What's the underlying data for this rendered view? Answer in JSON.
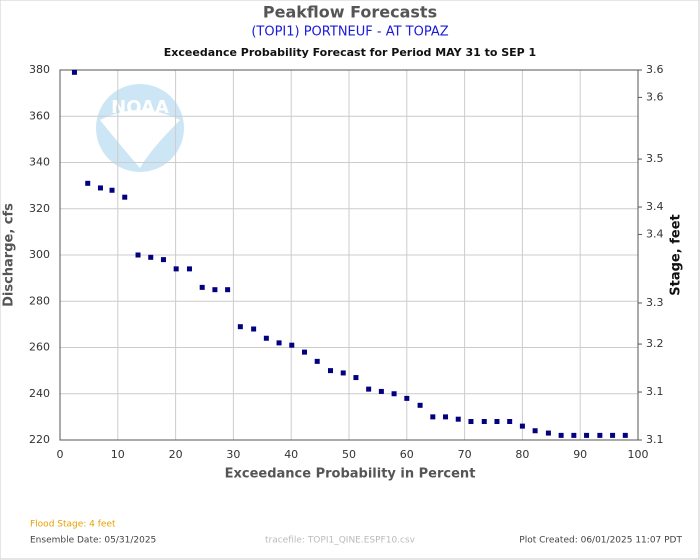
{
  "chart_data": {
    "type": "scatter",
    "title": "Peakflow Forecasts",
    "subtitle": "(TOPI1) PORTNEUF - AT TOPAZ",
    "subtitle2": "Exceedance Probability Forecast for Period MAY 31 to SEP 1",
    "watermark": "NOAA",
    "xlabel": "Exceedance Probability in Percent",
    "ylabel": "Discharge, cfs",
    "y2label": "Stage, feet",
    "xlim": [
      0,
      100
    ],
    "xticks": [
      0,
      10,
      20,
      30,
      40,
      50,
      60,
      70,
      80,
      90,
      100
    ],
    "ylim": [
      220,
      380
    ],
    "yticks": [
      220,
      240,
      260,
      280,
      300,
      320,
      340,
      360,
      380
    ],
    "y2lim": [
      3.06,
      3.6
    ],
    "y2ticks": [
      {
        "value": 3.06,
        "label": "3.1"
      },
      {
        "value": 3.13,
        "label": "3.1"
      },
      {
        "value": 3.2,
        "label": "3.2"
      },
      {
        "value": 3.26,
        "label": "3.3"
      },
      {
        "value": 3.36,
        "label": "3.4"
      },
      {
        "value": 3.4,
        "label": "3.4"
      },
      {
        "value": 3.47,
        "label": "3.5"
      },
      {
        "value": 3.56,
        "label": "3.6"
      },
      {
        "value": 3.6,
        "label": "3.6"
      }
    ],
    "grid": true,
    "color": "#000080",
    "x": [
      2.5,
      4.8,
      7,
      9,
      11.2,
      13.5,
      15.7,
      17.9,
      20.1,
      22.4,
      24.6,
      26.8,
      29,
      31.2,
      33.5,
      35.7,
      37.9,
      40.1,
      42.3,
      44.5,
      46.8,
      49,
      51.2,
      53.4,
      55.6,
      57.8,
      60,
      62.3,
      64.5,
      66.7,
      68.9,
      71.1,
      73.4,
      75.6,
      77.8,
      80,
      82.2,
      84.5,
      86.7,
      88.9,
      91.1,
      93.4,
      95.6,
      97.8
    ],
    "values": [
      379,
      331,
      329,
      328,
      325,
      300,
      299,
      298,
      294,
      294,
      286,
      285,
      285,
      269,
      268,
      264,
      262,
      261,
      258,
      254,
      250,
      249,
      247,
      242,
      241,
      240,
      238,
      235,
      230,
      230,
      229,
      228,
      228,
      228,
      228,
      226,
      224,
      223,
      222,
      222,
      222,
      222,
      222,
      222
    ],
    "flood_stage": "Flood Stage: 4 feet",
    "ensemble_date": "Ensemble Date: 05/31/2025",
    "tracefile": "tracefile: TOPI1_QINE.ESPF10.csv",
    "plot_created": "Plot Created: 06/01/2025 11:07 PDT"
  }
}
